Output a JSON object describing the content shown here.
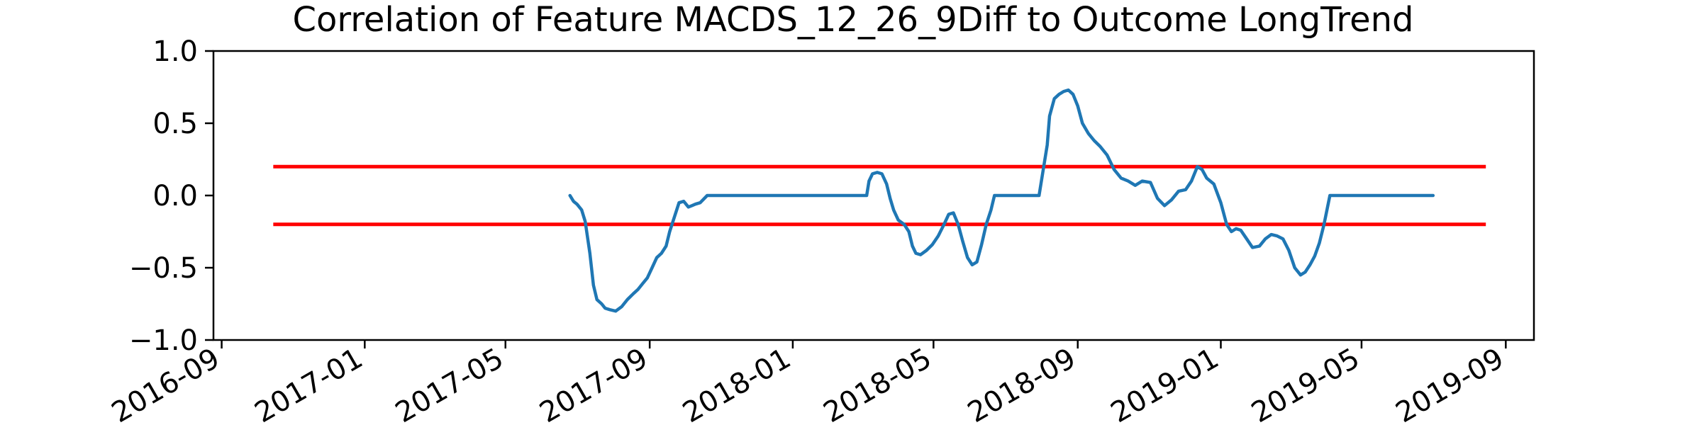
{
  "chart_data": {
    "type": "line",
    "title": "Correlation of Feature MACDS_12_26_9Diff to Outcome LongTrend",
    "xlabel": "",
    "ylabel": "",
    "ylim": [
      -1.0,
      1.0
    ],
    "xlim": [
      "2016-08-25",
      "2019-09-25"
    ],
    "y_ticks": [
      {
        "value": -1.0,
        "label": "−1.0"
      },
      {
        "value": -0.5,
        "label": "−0.5"
      },
      {
        "value": 0.0,
        "label": "0.0"
      },
      {
        "value": 0.5,
        "label": "0.5"
      },
      {
        "value": 1.0,
        "label": "1.0"
      }
    ],
    "x_ticks": [
      {
        "value": "2016-09-01",
        "label": "2016-09"
      },
      {
        "value": "2017-01-01",
        "label": "2017-01"
      },
      {
        "value": "2017-05-01",
        "label": "2017-05"
      },
      {
        "value": "2017-09-01",
        "label": "2017-09"
      },
      {
        "value": "2018-01-01",
        "label": "2018-01"
      },
      {
        "value": "2018-05-01",
        "label": "2018-05"
      },
      {
        "value": "2018-09-01",
        "label": "2018-09"
      },
      {
        "value": "2019-01-01",
        "label": "2019-01"
      },
      {
        "value": "2019-05-01",
        "label": "2019-05"
      },
      {
        "value": "2019-09-01",
        "label": "2019-09"
      }
    ],
    "threshold_lines": [
      {
        "name": "upper-threshold",
        "y": 0.2,
        "x_start": "2016-10-15",
        "x_end": "2019-08-15",
        "color": "#ff0000"
      },
      {
        "name": "lower-threshold",
        "y": -0.2,
        "x_start": "2016-10-15",
        "x_end": "2019-08-15",
        "color": "#ff0000"
      }
    ],
    "series": [
      {
        "name": "correlation",
        "color": "#1f77b4",
        "x": [
          "2017-06-25",
          "2017-06-28",
          "2017-07-01",
          "2017-07-05",
          "2017-07-08",
          "2017-07-12",
          "2017-07-15",
          "2017-07-18",
          "2017-07-22",
          "2017-07-25",
          "2017-07-29",
          "2017-08-03",
          "2017-08-08",
          "2017-08-13",
          "2017-08-18",
          "2017-08-22",
          "2017-08-26",
          "2017-08-30",
          "2017-09-03",
          "2017-09-07",
          "2017-09-11",
          "2017-09-15",
          "2017-09-18",
          "2017-09-22",
          "2017-09-26",
          "2017-09-30",
          "2017-10-04",
          "2017-10-07",
          "2017-10-10",
          "2017-10-14",
          "2017-10-20",
          "2017-10-26",
          "2017-10-27",
          "2017-11-15",
          "2017-12-15",
          "2018-01-15",
          "2018-02-15",
          "2018-03-05",
          "2018-03-07",
          "2018-03-10",
          "2018-03-14",
          "2018-03-18",
          "2018-03-22",
          "2018-03-25",
          "2018-03-28",
          "2018-04-01",
          "2018-04-06",
          "2018-04-10",
          "2018-04-13",
          "2018-04-16",
          "2018-04-20",
          "2018-04-25",
          "2018-04-30",
          "2018-05-05",
          "2018-05-10",
          "2018-05-14",
          "2018-05-18",
          "2018-05-22",
          "2018-05-26",
          "2018-05-30",
          "2018-06-03",
          "2018-06-07",
          "2018-06-11",
          "2018-06-15",
          "2018-06-19",
          "2018-06-22",
          "2018-06-26",
          "2018-07-01",
          "2018-07-05",
          "2018-07-10",
          "2018-07-20",
          "2018-07-30",
          "2018-08-06",
          "2018-08-08",
          "2018-08-12",
          "2018-08-16",
          "2018-08-20",
          "2018-08-24",
          "2018-08-28",
          "2018-09-01",
          "2018-09-05",
          "2018-09-10",
          "2018-09-15",
          "2018-09-20",
          "2018-09-26",
          "2018-10-02",
          "2018-10-08",
          "2018-10-14",
          "2018-10-20",
          "2018-10-26",
          "2018-11-02",
          "2018-11-08",
          "2018-11-14",
          "2018-11-20",
          "2018-11-26",
          "2018-12-02",
          "2018-12-07",
          "2018-12-12",
          "2018-12-16",
          "2018-12-20",
          "2018-12-26",
          "2019-01-01",
          "2019-01-06",
          "2019-01-10",
          "2019-01-14",
          "2019-01-18",
          "2019-01-23",
          "2019-01-28",
          "2019-02-03",
          "2019-02-08",
          "2019-02-13",
          "2019-02-18",
          "2019-02-23",
          "2019-02-28",
          "2019-03-05",
          "2019-03-10",
          "2019-03-14",
          "2019-03-18",
          "2019-03-22",
          "2019-03-26",
          "2019-03-30",
          "2019-04-04",
          "2019-04-08",
          "2019-04-12",
          "2019-04-16",
          "2019-04-20",
          "2019-04-24",
          "2019-05-15",
          "2019-06-15",
          "2019-07-01"
        ],
        "y": [
          0.0,
          -0.04,
          -0.06,
          -0.1,
          -0.18,
          -0.4,
          -0.62,
          -0.72,
          -0.75,
          -0.78,
          -0.79,
          -0.8,
          -0.77,
          -0.72,
          -0.68,
          -0.65,
          -0.61,
          -0.57,
          -0.5,
          -0.43,
          -0.4,
          -0.35,
          -0.25,
          -0.15,
          -0.05,
          -0.04,
          -0.08,
          -0.07,
          -0.06,
          -0.05,
          0.0,
          0.0,
          0.0,
          0.0,
          0.0,
          0.0,
          0.0,
          0.0,
          0.1,
          0.15,
          0.16,
          0.15,
          0.08,
          -0.02,
          -0.1,
          -0.17,
          -0.2,
          -0.25,
          -0.35,
          -0.4,
          -0.41,
          -0.38,
          -0.34,
          -0.28,
          -0.2,
          -0.13,
          -0.12,
          -0.2,
          -0.32,
          -0.43,
          -0.48,
          -0.46,
          -0.34,
          -0.2,
          -0.1,
          0.0,
          0.0,
          0.0,
          0.0,
          0.0,
          0.0,
          0.0,
          0.35,
          0.55,
          0.67,
          0.7,
          0.72,
          0.73,
          0.7,
          0.62,
          0.5,
          0.43,
          0.38,
          0.34,
          0.28,
          0.18,
          0.12,
          0.1,
          0.07,
          0.1,
          0.09,
          -0.02,
          -0.07,
          -0.03,
          0.03,
          0.04,
          0.1,
          0.2,
          0.18,
          0.12,
          0.08,
          -0.05,
          -0.2,
          -0.25,
          -0.23,
          -0.24,
          -0.3,
          -0.36,
          -0.35,
          -0.3,
          -0.27,
          -0.28,
          -0.3,
          -0.38,
          -0.5,
          -0.55,
          -0.53,
          -0.48,
          -0.42,
          -0.33,
          -0.2,
          0.0,
          0.0,
          0.0,
          0.0,
          0.0,
          0.0,
          0.0,
          0.0,
          0.0
        ]
      }
    ]
  }
}
